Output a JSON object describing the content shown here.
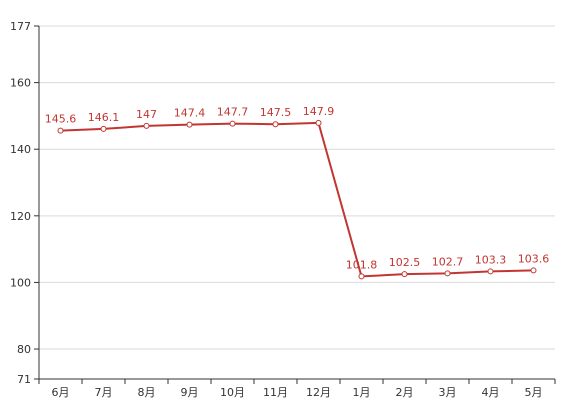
{
  "chart_data": {
    "type": "line",
    "categories": [
      "6月",
      "7月",
      "8月",
      "9月",
      "10月",
      "11月",
      "12月",
      "1月",
      "2月",
      "3月",
      "4月",
      "5月"
    ],
    "series": [
      {
        "values": [
          145.6,
          146.1,
          147,
          147.4,
          147.7,
          147.5,
          147.9,
          101.8,
          102.5,
          102.7,
          103.3,
          103.6
        ],
        "labels": [
          "145.6",
          "146.1",
          "147",
          "147.4",
          "147.7",
          "147.5",
          "147.9",
          "101.8",
          "102.5",
          "102.7",
          "103.3",
          "103.6"
        ]
      }
    ],
    "ylim": [
      71,
      177
    ],
    "yticks": [
      "177",
      "160",
      "140",
      "120",
      "100",
      "80",
      "71"
    ],
    "ytick_values": [
      177,
      160,
      140,
      120,
      100,
      80,
      71
    ],
    "grid": true,
    "colors": {
      "line": "#c23531",
      "grid": "#d9d9d9",
      "axis": "#333333",
      "label": "#c23531"
    }
  }
}
